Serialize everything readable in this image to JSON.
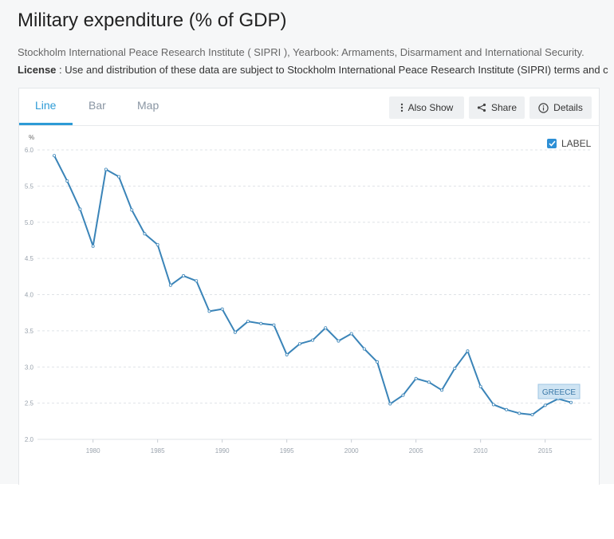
{
  "page": {
    "title": "Military expenditure (% of GDP)",
    "source": "Stockholm International Peace Research Institute ( SIPRI ), Yearbook: Armaments, Disarmament and International Security.",
    "license_label": "License",
    "license_text": " : Use and distribution of these data are subject to Stockholm International Peace Research Institute (SIPRI) terms and c"
  },
  "tabs": [
    {
      "label": "Line",
      "active": true
    },
    {
      "label": "Bar",
      "active": false
    },
    {
      "label": "Map",
      "active": false
    }
  ],
  "toolbar": {
    "also_show": "Also Show",
    "share": "Share",
    "details": "Details"
  },
  "label_toggle": {
    "text": "LABEL",
    "checked": true
  },
  "colors": {
    "accent": "#2d9bd6",
    "line": "#3a84b8",
    "label_bg": "#cfe4f3"
  },
  "chart_data": {
    "type": "line",
    "ylabel": "%",
    "xlabel": "",
    "ylim": [
      2.0,
      6.0
    ],
    "yticks": [
      "2.0",
      "2.5",
      "3.0",
      "3.5",
      "4.0",
      "4.5",
      "5.0",
      "5.5",
      "6.0"
    ],
    "xticks": [
      "1980",
      "1985",
      "1990",
      "1995",
      "2000",
      "2005",
      "2010",
      "2015"
    ],
    "grid": true,
    "series": [
      {
        "name": "GREECE",
        "x": [
          1977,
          1978,
          1979,
          1980,
          1981,
          1982,
          1983,
          1984,
          1985,
          1986,
          1987,
          1988,
          1989,
          1990,
          1991,
          1992,
          1993,
          1994,
          1995,
          1996,
          1997,
          1998,
          1999,
          2000,
          2001,
          2002,
          2003,
          2004,
          2005,
          2006,
          2007,
          2008,
          2009,
          2010,
          2011,
          2012,
          2013,
          2014,
          2015,
          2016,
          2017
        ],
        "values": [
          5.92,
          5.57,
          5.18,
          4.67,
          5.73,
          5.63,
          5.17,
          4.84,
          4.69,
          4.13,
          4.26,
          4.19,
          3.77,
          3.8,
          3.48,
          3.63,
          3.6,
          3.58,
          3.17,
          3.32,
          3.37,
          3.54,
          3.36,
          3.46,
          3.25,
          3.07,
          2.49,
          2.61,
          2.84,
          2.79,
          2.68,
          2.98,
          3.22,
          2.73,
          2.48,
          2.41,
          2.36,
          2.34,
          2.47,
          2.56,
          2.51
        ]
      }
    ]
  }
}
